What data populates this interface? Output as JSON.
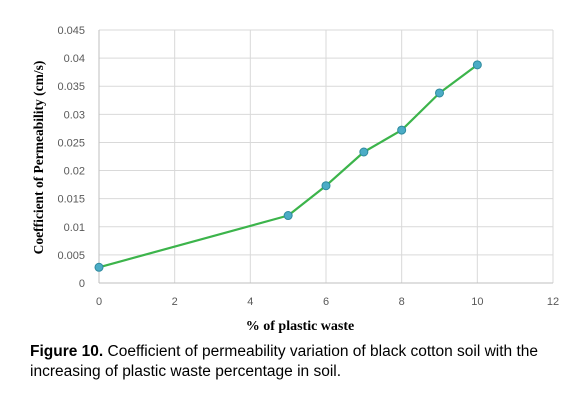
{
  "chart_data": {
    "type": "line",
    "title": "",
    "xlabel": "% of plastic waste",
    "ylabel": "Coefficient of Permeability (cm/s)",
    "xlim": [
      0,
      12
    ],
    "ylim": [
      0,
      0.045
    ],
    "x_ticks": [
      "0",
      "2",
      "4",
      "6",
      "8",
      "10",
      "12"
    ],
    "y_ticks": [
      "0",
      "0.005",
      "0.01",
      "0.015",
      "0.02",
      "0.025",
      "0.03",
      "0.035",
      "0.04",
      "0.045"
    ],
    "grid": true,
    "legend": "none",
    "series": [
      {
        "x": [
          0,
          5,
          6,
          7,
          8,
          9,
          10
        ],
        "y": [
          0.0028,
          0.012,
          0.0173,
          0.0233,
          0.0272,
          0.0338,
          0.0388
        ],
        "line_color": "#3cb44b",
        "marker_color": "#4bacc6"
      }
    ]
  },
  "caption": {
    "label": "Figure 10.",
    "text": "Coefficient of permeability variation of black cotton soil with the increasing of plastic waste percentage in soil."
  },
  "colors": {
    "grid": "#d9d9d9",
    "axis": "#bfbfbf",
    "line": "#3cb44b",
    "marker": "#4bacc6",
    "marker_stroke": "#2e8a9e"
  }
}
